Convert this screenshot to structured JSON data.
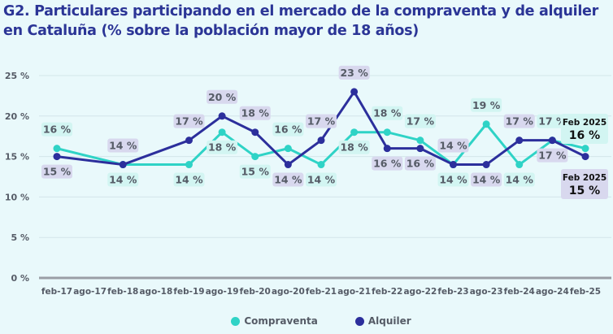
{
  "title": "G2. Particulares participando en el mercado de la compraventa y de alquiler en Cataluña (% sobre la población mayor de 18 años)",
  "chart_data": {
    "type": "line",
    "title": "G2. Particulares participando en el mercado de la compraventa y de alquiler en Cataluña (% sobre la población mayor de 18 años)",
    "categories": [
      "feb-17",
      "ago-17",
      "feb-18",
      "ago-18",
      "feb-19",
      "ago-19",
      "feb-20",
      "ago-20",
      "feb-21",
      "ago-21",
      "feb-22",
      "ago-22",
      "feb-23",
      "ago-23",
      "feb-24",
      "ago-24",
      "feb-25"
    ],
    "yticks": [
      "0 %",
      "5 %",
      "10 %",
      "15 %",
      "20 %",
      "25 %"
    ],
    "ylim": [
      0,
      25
    ],
    "grid": true,
    "legend": "bottom",
    "series": [
      {
        "name": "Compraventa",
        "color": "#2fd3c6",
        "label_bg": "#d2f5f2",
        "values": [
          16,
          null,
          14,
          null,
          14,
          18,
          15,
          16,
          14,
          18,
          18,
          17,
          14,
          19,
          14,
          17,
          16
        ]
      },
      {
        "name": "Alquiler",
        "color": "#2c2f9c",
        "label_bg": "#d8d8ee",
        "values": [
          15,
          null,
          14,
          null,
          17,
          20,
          18,
          14,
          17,
          23,
          16,
          16,
          14,
          14,
          17,
          17,
          15
        ]
      }
    ],
    "annotations": [
      {
        "series": "Compraventa",
        "period": "Feb 2025",
        "value": "16 %"
      },
      {
        "series": "Alquiler",
        "period": "Feb 2025",
        "value": "15 %"
      }
    ]
  }
}
